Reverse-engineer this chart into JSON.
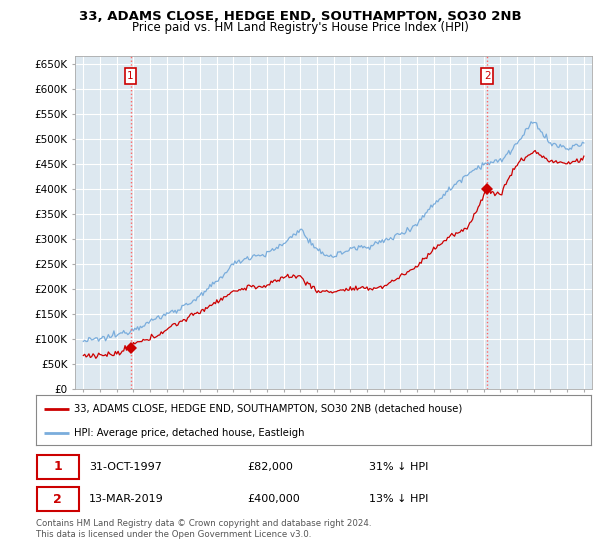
{
  "title": "33, ADAMS CLOSE, HEDGE END, SOUTHAMPTON, SO30 2NB",
  "subtitle": "Price paid vs. HM Land Registry's House Price Index (HPI)",
  "ylabel_ticks": [
    "£0",
    "£50K",
    "£100K",
    "£150K",
    "£200K",
    "£250K",
    "£300K",
    "£350K",
    "£400K",
    "£450K",
    "£500K",
    "£550K",
    "£600K",
    "£650K"
  ],
  "ytick_values": [
    0,
    50000,
    100000,
    150000,
    200000,
    250000,
    300000,
    350000,
    400000,
    450000,
    500000,
    550000,
    600000,
    650000
  ],
  "ylim": [
    0,
    665000
  ],
  "xlim_left": 1994.5,
  "xlim_right": 2025.5,
  "hpi_color": "#7aaddc",
  "price_color": "#cc0000",
  "chart_bg": "#dde8f0",
  "sale1_price": 82000,
  "sale1_x": 1997.83,
  "sale2_price": 400000,
  "sale2_x": 2019.2,
  "legend_label1": "33, ADAMS CLOSE, HEDGE END, SOUTHAMPTON, SO30 2NB (detached house)",
  "legend_label2": "HPI: Average price, detached house, Eastleigh",
  "table_row1": [
    "1",
    "31-OCT-1997",
    "£82,000",
    "31% ↓ HPI"
  ],
  "table_row2": [
    "2",
    "13-MAR-2019",
    "£400,000",
    "13% ↓ HPI"
  ],
  "footnote": "Contains HM Land Registry data © Crown copyright and database right 2024.\nThis data is licensed under the Open Government Licence v3.0.",
  "bg_color": "#ffffff",
  "grid_color": "#ffffff",
  "title_fontsize": 9.5,
  "subtitle_fontsize": 8.5,
  "hpi_anchors_x": [
    1995,
    1996,
    1997,
    1998,
    1999,
    2000,
    2001,
    2002,
    2003,
    2004,
    2005,
    2006,
    2007,
    2008,
    2009,
    2010,
    2011,
    2012,
    2013,
    2014,
    2015,
    2016,
    2017,
    2018,
    2019,
    2020,
    2021,
    2022,
    2023,
    2024,
    2025
  ],
  "hpi_anchors_y": [
    96000,
    100000,
    108000,
    120000,
    135000,
    150000,
    165000,
    185000,
    215000,
    250000,
    265000,
    270000,
    290000,
    320000,
    275000,
    265000,
    280000,
    285000,
    295000,
    310000,
    330000,
    370000,
    400000,
    430000,
    450000,
    455000,
    490000,
    535000,
    490000,
    480000,
    490000
  ],
  "price_anchors_x": [
    1995,
    1996,
    1997,
    1997.83,
    1998,
    1999,
    2000,
    2001,
    2002,
    2003,
    2004,
    2005,
    2006,
    2007,
    2008,
    2009,
    2010,
    2011,
    2012,
    2013,
    2014,
    2015,
    2016,
    2017,
    2018,
    2019.2,
    2019.5,
    2020,
    2021,
    2022,
    2023,
    2024,
    2025
  ],
  "price_anchors_y": [
    67000,
    68000,
    70000,
    82000,
    90000,
    100000,
    120000,
    138000,
    155000,
    175000,
    195000,
    205000,
    205000,
    225000,
    225000,
    195000,
    195000,
    200000,
    200000,
    205000,
    225000,
    245000,
    280000,
    305000,
    320000,
    400000,
    390000,
    390000,
    450000,
    475000,
    455000,
    450000,
    460000
  ]
}
